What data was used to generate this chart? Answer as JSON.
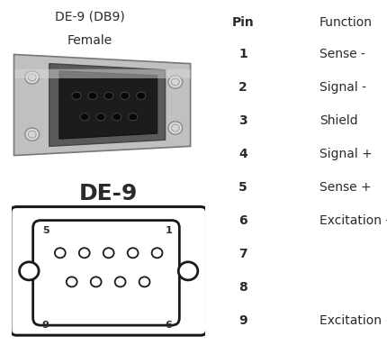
{
  "bg_color": "#ffffff",
  "title_connector": "DE-9 (DB9)",
  "subtitle_connector": "Female",
  "schematic_label": "DE-9",
  "pin_header": "Pin",
  "function_header": "Function",
  "pins": [
    "1",
    "2",
    "3",
    "4",
    "5",
    "6",
    "7",
    "8",
    "9"
  ],
  "functions": [
    "Sense -",
    "Signal -",
    "Shield",
    "Signal +",
    "Sense +",
    "Excitation -",
    "",
    "",
    "Excitation +"
  ],
  "text_color": "#2a2a2a",
  "title_fontsize": 10,
  "subtitle_fontsize": 10,
  "header_fontsize": 10,
  "pin_fontsize": 10,
  "func_fontsize": 10,
  "schematic_label_fontsize": 18,
  "schematic_pin_label_fontsize": 7
}
